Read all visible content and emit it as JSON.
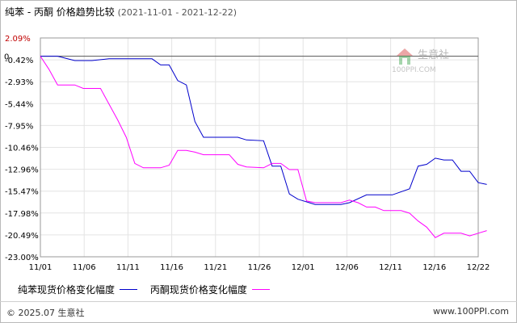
{
  "header": {
    "title": "纯苯 - 丙酮 价格趋势比较",
    "date_range": "(2021-11-01 - 2021-12-22)"
  },
  "watermark": {
    "name": "生意社",
    "url": "100PPI.COM"
  },
  "footer": {
    "copyright": "© 2025.07 生意社",
    "site": "www.100PPI.com"
  },
  "colors": {
    "series_1": "#0000cc",
    "series_2": "#ff00ff",
    "zero_line": "#555555",
    "grid": "#e4e4e4",
    "axis": "#999999",
    "top_tick_label": "#c00000"
  },
  "chart_data": {
    "type": "line",
    "title": "纯苯 - 丙酮 价格趋势比较",
    "xlabel": "",
    "ylabel": "",
    "x_range": [
      "2021-11-01",
      "2021-12-22"
    ],
    "ylim": [
      -23.0,
      2.09
    ],
    "grid": true,
    "legend_position": "bottom-left",
    "x_ticks": [
      "11/01",
      "11/06",
      "11/11",
      "11/16",
      "11/21",
      "11/26",
      "12/01",
      "12/06",
      "12/11",
      "12/16",
      "12/22"
    ],
    "y_ticks": [
      "2.09%",
      "-0.42%",
      "-2.93%",
      "-5.44%",
      "-7.95%",
      "-10.46%",
      "-12.96%",
      "-15.47%",
      "-17.98%",
      "-20.49%",
      "-23.00%"
    ],
    "zero_label": "0",
    "series": [
      {
        "name": "纯苯现货价格变化幅度",
        "color": "#0000cc",
        "points": [
          [
            "2021-11-01",
            0.0
          ],
          [
            "2021-11-03",
            0.0
          ],
          [
            "2021-11-05",
            -0.5
          ],
          [
            "2021-11-07",
            -0.5
          ],
          [
            "2021-11-09",
            -0.3
          ],
          [
            "2021-11-14",
            -0.3
          ],
          [
            "2021-11-15",
            -1.0
          ],
          [
            "2021-11-16",
            -1.0
          ],
          [
            "2021-11-17",
            -2.8
          ],
          [
            "2021-11-18",
            -3.3
          ],
          [
            "2021-11-19",
            -7.5
          ],
          [
            "2021-11-20",
            -9.3
          ],
          [
            "2021-11-24",
            -9.3
          ],
          [
            "2021-11-25",
            -9.6
          ],
          [
            "2021-11-27",
            -9.7
          ],
          [
            "2021-11-28",
            -12.6
          ],
          [
            "2021-11-29",
            -12.6
          ],
          [
            "2021-11-30",
            -15.8
          ],
          [
            "2021-12-01",
            -16.4
          ],
          [
            "2021-12-03",
            -17.0
          ],
          [
            "2021-12-06",
            -17.0
          ],
          [
            "2021-12-07",
            -16.8
          ],
          [
            "2021-12-09",
            -15.9
          ],
          [
            "2021-12-12",
            -15.9
          ],
          [
            "2021-12-14",
            -15.2
          ],
          [
            "2021-12-15",
            -12.6
          ],
          [
            "2021-12-16",
            -12.4
          ],
          [
            "2021-12-17",
            -11.7
          ],
          [
            "2021-12-18",
            -11.9
          ],
          [
            "2021-12-19",
            -11.9
          ],
          [
            "2021-12-20",
            -13.2
          ],
          [
            "2021-12-21",
            -13.2
          ],
          [
            "2021-12-22",
            -14.5
          ],
          [
            "2021-12-23",
            -14.7
          ]
        ]
      },
      {
        "name": "丙酮现货价格变化幅度",
        "color": "#ff00ff",
        "points": [
          [
            "2021-11-01",
            0.0
          ],
          [
            "2021-11-02",
            -1.5
          ],
          [
            "2021-11-03",
            -3.3
          ],
          [
            "2021-11-05",
            -3.3
          ],
          [
            "2021-11-06",
            -3.7
          ],
          [
            "2021-11-08",
            -3.7
          ],
          [
            "2021-11-09",
            -5.5
          ],
          [
            "2021-11-10",
            -7.3
          ],
          [
            "2021-11-11",
            -9.3
          ],
          [
            "2021-11-12",
            -12.3
          ],
          [
            "2021-11-13",
            -12.8
          ],
          [
            "2021-11-15",
            -12.8
          ],
          [
            "2021-11-16",
            -12.5
          ],
          [
            "2021-11-17",
            -10.8
          ],
          [
            "2021-11-18",
            -10.8
          ],
          [
            "2021-11-19",
            -11.0
          ],
          [
            "2021-11-20",
            -11.3
          ],
          [
            "2021-11-23",
            -11.3
          ],
          [
            "2021-11-24",
            -12.4
          ],
          [
            "2021-11-25",
            -12.7
          ],
          [
            "2021-11-27",
            -12.8
          ],
          [
            "2021-11-28",
            -12.3
          ],
          [
            "2021-11-29",
            -12.3
          ],
          [
            "2021-11-30",
            -13.0
          ],
          [
            "2021-12-01",
            -13.0
          ],
          [
            "2021-12-02",
            -16.6
          ],
          [
            "2021-12-03",
            -16.8
          ],
          [
            "2021-12-06",
            -16.8
          ],
          [
            "2021-12-07",
            -16.5
          ],
          [
            "2021-12-08",
            -16.8
          ],
          [
            "2021-12-09",
            -17.3
          ],
          [
            "2021-12-10",
            -17.3
          ],
          [
            "2021-12-11",
            -17.7
          ],
          [
            "2021-12-13",
            -17.7
          ],
          [
            "2021-12-14",
            -18.0
          ],
          [
            "2021-12-15",
            -18.9
          ],
          [
            "2021-12-16",
            -19.6
          ],
          [
            "2021-12-17",
            -20.8
          ],
          [
            "2021-12-18",
            -20.3
          ],
          [
            "2021-12-19",
            -20.3
          ],
          [
            "2021-12-20",
            -20.3
          ],
          [
            "2021-12-21",
            -20.6
          ],
          [
            "2021-12-22",
            -20.3
          ],
          [
            "2021-12-23",
            -20.0
          ]
        ]
      }
    ]
  }
}
